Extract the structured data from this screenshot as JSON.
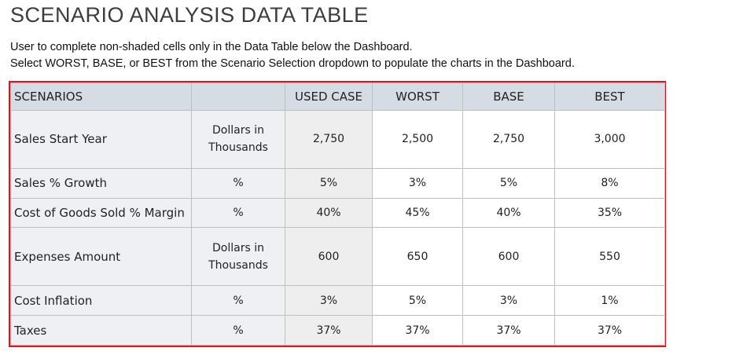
{
  "title": "SCENARIO ANALYSIS DATA TABLE",
  "instructions": [
    "User to complete non-shaded cells only in the Data Table below the Dashboard.",
    "Select WORST, BASE, or BEST from the Scenario Selection dropdown to populate the charts in the Dashboard."
  ],
  "table": {
    "header": {
      "label": "SCENARIOS",
      "columns": [
        "USED CASE",
        "WORST",
        "BASE",
        "BEST"
      ]
    },
    "rows": [
      {
        "label": "Sales Start Year",
        "unit": "Dollars in Thousands",
        "values": [
          "2,750",
          "2,500",
          "2,750",
          "3,000"
        ]
      },
      {
        "label": "Sales % Growth",
        "unit": "%",
        "values": [
          "5%",
          "3%",
          "5%",
          "8%"
        ]
      },
      {
        "label": "Cost of Goods Sold % Margin",
        "unit": "%",
        "values": [
          "40%",
          "45%",
          "40%",
          "35%"
        ]
      },
      {
        "label": "Expenses Amount",
        "unit": "Dollars in Thousands",
        "values": [
          "600",
          "650",
          "600",
          "550"
        ]
      },
      {
        "label": "Cost Inflation",
        "unit": "%",
        "values": [
          "3%",
          "5%",
          "3%",
          "1%"
        ]
      },
      {
        "label": "Taxes",
        "unit": "%",
        "values": [
          "37%",
          "37%",
          "37%",
          "37%"
        ]
      }
    ]
  }
}
